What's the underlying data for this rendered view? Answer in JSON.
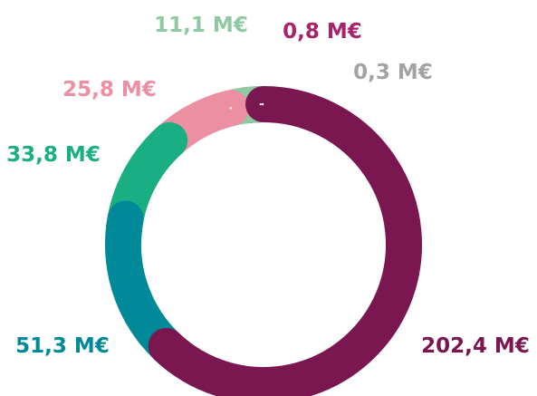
{
  "chart_data": {
    "type": "donut",
    "unit": "M€",
    "slices": [
      {
        "label": "202,4 M€",
        "value": 202.4,
        "color": "#7a1650"
      },
      {
        "label": "51,3 M€",
        "value": 51.3,
        "color": "#008a99"
      },
      {
        "label": "33,8 M€",
        "value": 33.8,
        "color": "#1aae83"
      },
      {
        "label": "25,8 M€",
        "value": 25.8,
        "color": "#ec8fa3"
      },
      {
        "label": "11,1 M€",
        "value": 11.1,
        "color": "#8fc9a1"
      },
      {
        "label": "0,8 M€",
        "value": 0.8,
        "color": "#a8226c"
      },
      {
        "label": "0,3 M€",
        "value": 0.3,
        "color": "#a3a3a3"
      }
    ],
    "start_angle_deg": 90,
    "direction": "clockwise",
    "legend": "none"
  }
}
